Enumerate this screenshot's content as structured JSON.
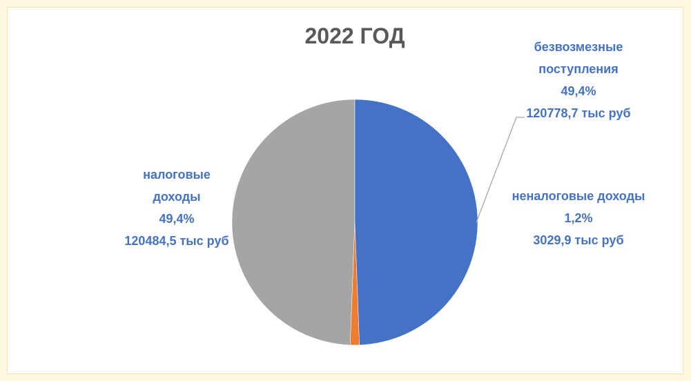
{
  "chart_data": {
    "type": "pie",
    "title": "2022 ГОД",
    "categories": [
      "безвозмезные поступления",
      "неналоговые доходы",
      "налоговые доходы"
    ],
    "values": [
      49.4,
      1.2,
      49.4
    ],
    "value_labels": [
      "49,4%",
      "1,2%",
      "49,4%"
    ],
    "amounts": [
      120778.7,
      3029.9,
      120484.5
    ],
    "amount_labels": [
      "120778,7 тыс руб",
      "3029,9 тыс руб",
      "120484,5 тыс руб"
    ],
    "colors": [
      "#4472c4",
      "#ed7d31",
      "#a5a5a5"
    ]
  }
}
